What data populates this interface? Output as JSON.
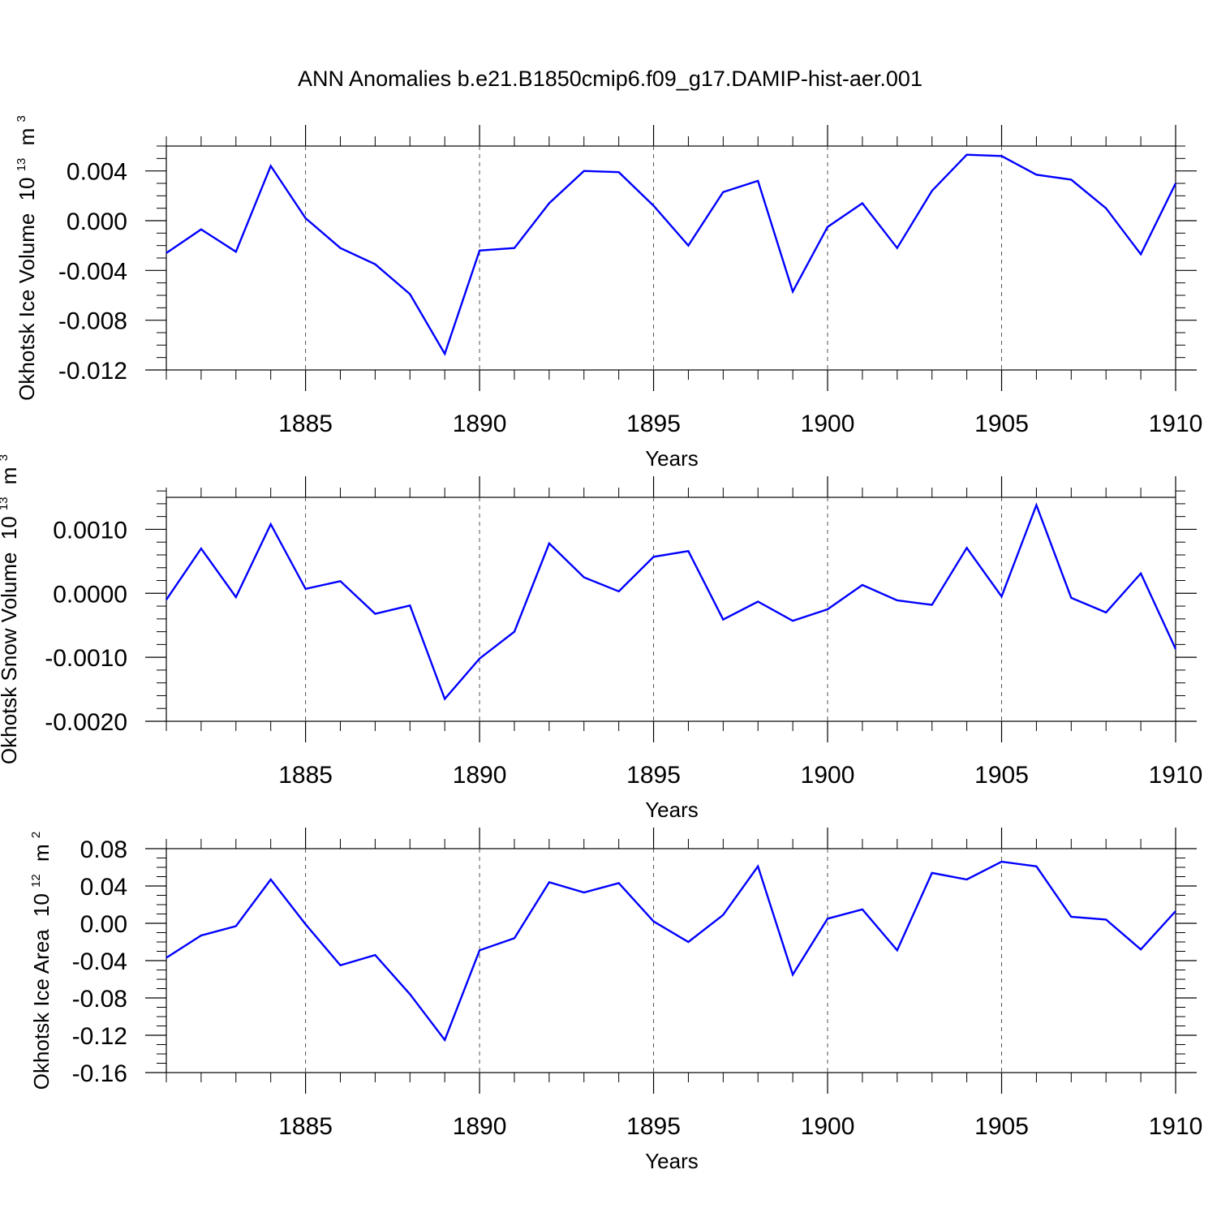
{
  "page_title": "ANN Anomalies b.e21.B1850cmip6.f09_g17.DAMIP-hist-aer.001",
  "line_color": "#0000ff",
  "chart_data": [
    {
      "type": "line",
      "id": "ice-volume",
      "ylabel": "Okhotsk Ice Volume",
      "ylabel_unit_base": "10",
      "ylabel_unit_exp": "13",
      "ylabel_unit": "m",
      "ylabel_unit_unit_exp": "3",
      "xlabel": "Years",
      "xlim": [
        1881,
        1910
      ],
      "ylim": [
        -0.012,
        0.006
      ],
      "x_ticks": [
        1885,
        1890,
        1895,
        1900,
        1905,
        1910
      ],
      "x_tick_labels": [
        "1885",
        "1890",
        "1895",
        "1900",
        "1905",
        "1910"
      ],
      "y_ticks": [
        -0.012,
        -0.008,
        -0.004,
        0.0,
        0.004
      ],
      "y_tick_labels": [
        "-0.012",
        "-0.008",
        "-0.004",
        "0.000",
        "0.004"
      ],
      "y_minor_step": 0.001,
      "x": [
        1881,
        1882,
        1883,
        1884,
        1885,
        1886,
        1887,
        1888,
        1889,
        1890,
        1891,
        1892,
        1893,
        1894,
        1895,
        1896,
        1897,
        1898,
        1899,
        1900,
        1901,
        1902,
        1903,
        1904,
        1905,
        1906,
        1907,
        1908,
        1909,
        1910
      ],
      "values": [
        -0.0026,
        -0.0007,
        -0.0025,
        0.0044,
        0.0002,
        -0.0022,
        -0.0035,
        -0.0059,
        -0.0107,
        -0.0024,
        -0.0022,
        0.0014,
        0.004,
        0.0039,
        0.0012,
        -0.002,
        0.0023,
        0.0032,
        -0.0057,
        -0.0005,
        0.0014,
        -0.0022,
        0.0024,
        0.0053,
        0.0052,
        0.0037,
        0.0033,
        0.001,
        -0.0027,
        0.003
      ]
    },
    {
      "type": "line",
      "id": "snow-volume",
      "ylabel": "Okhotsk Snow Volume",
      "ylabel_unit_base": "10",
      "ylabel_unit_exp": "13",
      "ylabel_unit": "m",
      "ylabel_unit_unit_exp": "3",
      "xlabel": "Years",
      "xlim": [
        1881,
        1910
      ],
      "ylim": [
        -0.002,
        0.0015
      ],
      "x_ticks": [
        1885,
        1890,
        1895,
        1900,
        1905,
        1910
      ],
      "x_tick_labels": [
        "1885",
        "1890",
        "1895",
        "1900",
        "1905",
        "1910"
      ],
      "y_ticks": [
        -0.002,
        -0.001,
        0.0,
        0.001
      ],
      "y_tick_labels": [
        "-0.0020",
        "-0.0010",
        "0.0000",
        "0.0010"
      ],
      "y_minor_step": 0.0002,
      "x": [
        1881,
        1882,
        1883,
        1884,
        1885,
        1886,
        1887,
        1888,
        1889,
        1890,
        1891,
        1892,
        1893,
        1894,
        1895,
        1896,
        1897,
        1898,
        1899,
        1900,
        1901,
        1902,
        1903,
        1904,
        1905,
        1906,
        1907,
        1908,
        1909,
        1910
      ],
      "values": [
        -0.0001,
        0.0007,
        -6e-05,
        0.00108,
        7e-05,
        0.00019,
        -0.00032,
        -0.00019,
        -0.00165,
        -0.00102,
        -0.0006,
        0.00078,
        0.00025,
        3e-05,
        0.00057,
        0.00066,
        -0.00041,
        -0.00013,
        -0.00043,
        -0.00025,
        0.00013,
        -0.00011,
        -0.00018,
        0.00071,
        -5e-05,
        0.00138,
        -7e-05,
        -0.0003,
        0.00031,
        -0.00087
      ]
    },
    {
      "type": "line",
      "id": "ice-area",
      "ylabel": "Okhotsk Ice Area",
      "ylabel_unit_base": "10",
      "ylabel_unit_exp": "12",
      "ylabel_unit": "m",
      "ylabel_unit_unit_exp": "2",
      "xlabel": "Years",
      "xlim": [
        1881,
        1910
      ],
      "ylim": [
        -0.16,
        0.08
      ],
      "x_ticks": [
        1885,
        1890,
        1895,
        1900,
        1905,
        1910
      ],
      "x_tick_labels": [
        "1885",
        "1890",
        "1895",
        "1900",
        "1905",
        "1910"
      ],
      "y_ticks": [
        -0.16,
        -0.12,
        -0.08,
        -0.04,
        0.0,
        0.04,
        0.08
      ],
      "y_tick_labels": [
        "-0.16",
        "-0.12",
        "-0.08",
        "-0.04",
        "0.00",
        "0.04",
        "0.08"
      ],
      "y_minor_step": 0.01,
      "x": [
        1881,
        1882,
        1883,
        1884,
        1885,
        1886,
        1887,
        1888,
        1889,
        1890,
        1891,
        1892,
        1893,
        1894,
        1895,
        1896,
        1897,
        1898,
        1899,
        1900,
        1901,
        1902,
        1903,
        1904,
        1905,
        1906,
        1907,
        1908,
        1909,
        1910
      ],
      "values": [
        -0.037,
        -0.013,
        -0.003,
        0.047,
        -0.001,
        -0.045,
        -0.034,
        -0.076,
        -0.125,
        -0.029,
        -0.016,
        0.044,
        0.033,
        0.043,
        0.002,
        -0.02,
        0.009,
        0.061,
        -0.055,
        0.005,
        0.015,
        -0.029,
        0.054,
        0.047,
        0.066,
        0.061,
        0.007,
        0.004,
        -0.028,
        0.013
      ]
    }
  ]
}
